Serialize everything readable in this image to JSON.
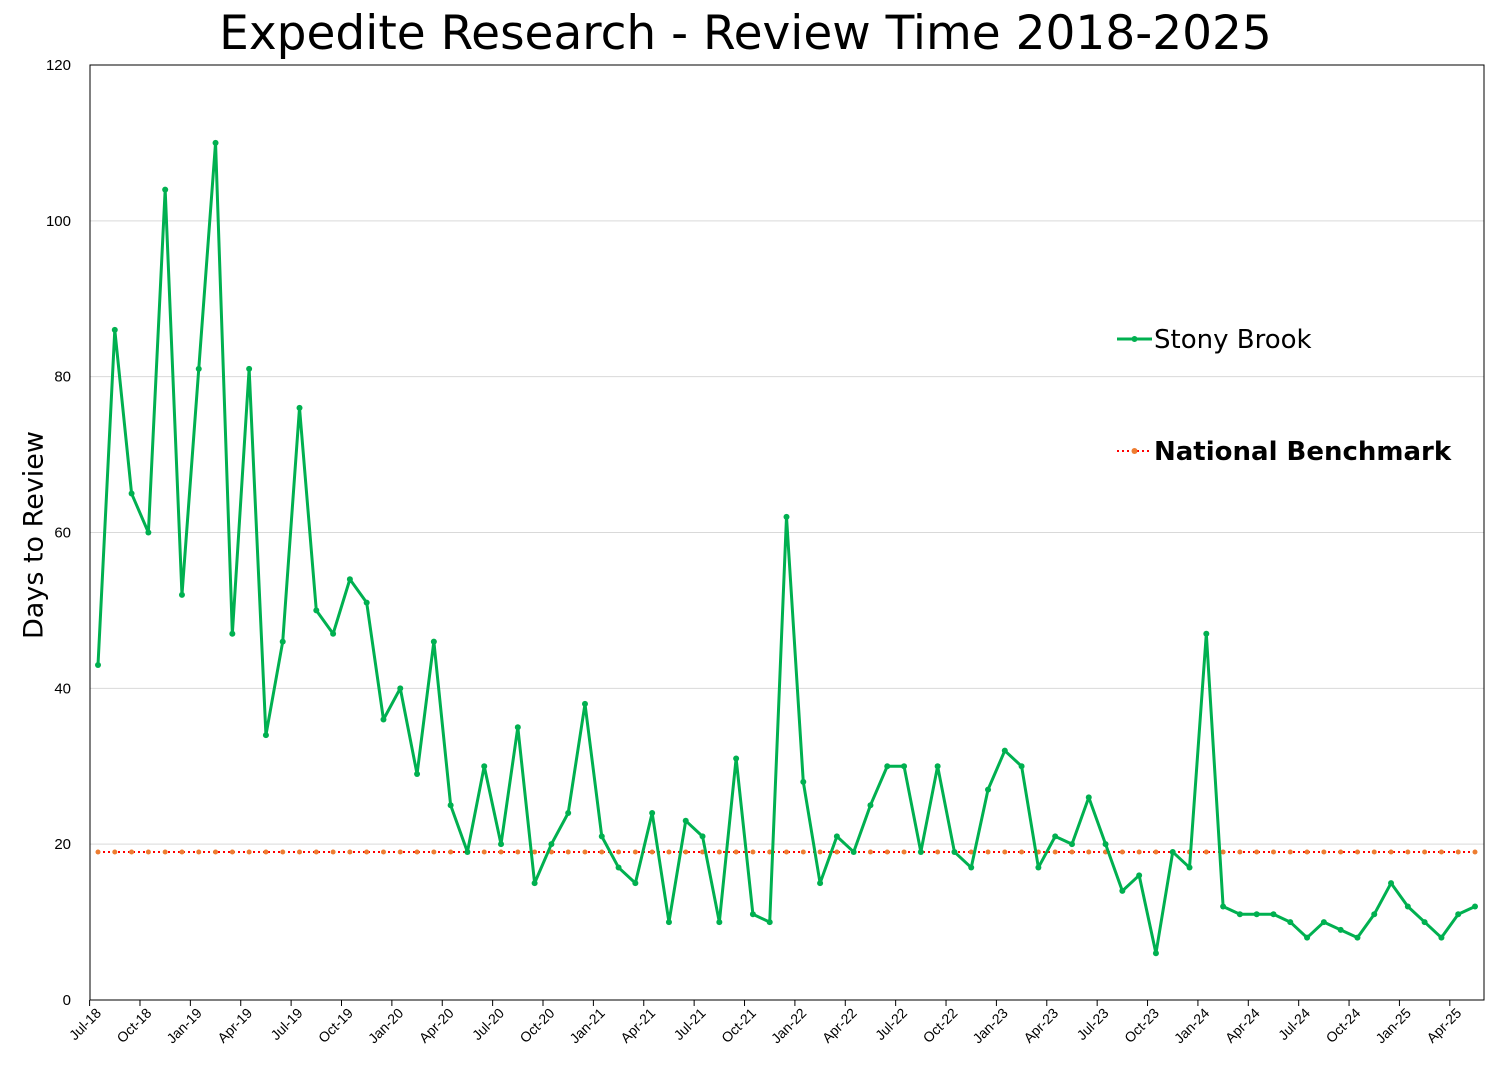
{
  "chart_data": {
    "type": "line",
    "title": "Expedite Research - Review Time 2018-2025",
    "ylabel": "Days to Review",
    "xlabel": "",
    "ylim": [
      0,
      120
    ],
    "yticks": [
      0,
      20,
      40,
      60,
      80,
      100,
      120
    ],
    "grid": "horizontal",
    "legend_position": "right",
    "x_tick_labels": [
      "Jul-18",
      "Oct-18",
      "Jan-19",
      "Apr-19",
      "Jul-19",
      "Oct-19",
      "Jan-20",
      "Apr-20",
      "Jul-20",
      "Oct-20",
      "Jan-21",
      "Apr-21",
      "Jul-21",
      "Oct-21",
      "Jan-22",
      "Apr-22",
      "Jul-22",
      "Oct-22",
      "Jan-23",
      "Apr-23",
      "Jul-23",
      "Oct-23",
      "Jan-24",
      "Apr-24",
      "Jul-24",
      "Oct-24",
      "Jan-25",
      "Apr-25"
    ],
    "x_start": "Jul-18",
    "x_end": "Jun-25",
    "series": [
      {
        "name": "Stony Brook",
        "color": "#00B050",
        "style": "solid",
        "values": [
          43,
          86,
          65,
          60,
          104,
          52,
          81,
          110,
          47,
          81,
          34,
          46,
          76,
          50,
          47,
          54,
          51,
          36,
          40,
          29,
          46,
          25,
          19,
          30,
          20,
          35,
          15,
          20,
          24,
          38,
          21,
          17,
          15,
          24,
          10,
          23,
          21,
          10,
          31,
          11,
          10,
          62,
          28,
          15,
          21,
          19,
          25,
          30,
          30,
          19,
          30,
          19,
          17,
          27,
          32,
          30,
          17,
          21,
          20,
          26,
          20,
          14,
          16,
          6,
          19,
          17,
          47,
          12,
          11,
          11,
          11,
          10,
          8,
          10,
          9,
          8,
          11,
          15,
          12,
          10,
          8,
          11,
          12
        ]
      },
      {
        "name": "National Benchmark",
        "color": "#FF0000",
        "marker_color": "#ED7D31",
        "style": "dotted",
        "constant_value": 19
      }
    ]
  }
}
